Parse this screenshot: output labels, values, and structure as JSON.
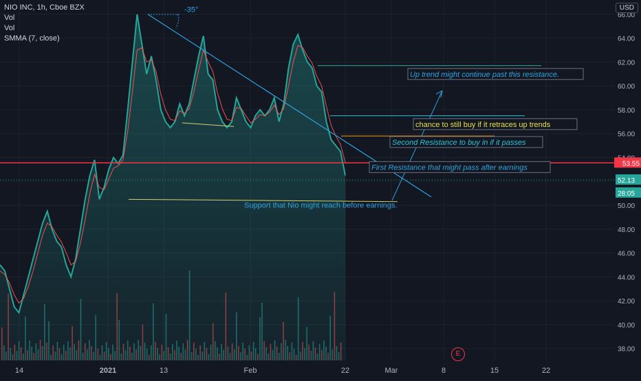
{
  "legend": {
    "title": "NIO INC, 1h, Cboe BZX",
    "line1": "Vol",
    "line2": "Vol",
    "line3": "SMMA (7, close)"
  },
  "currency": "USD",
  "earnings_badge": "E",
  "angle_label": "-35°",
  "chart_data": {
    "type": "area",
    "title": "NIO INC, 1h, Cboe BZX",
    "ylim": [
      37.0,
      67.2
    ],
    "y_ticks": [
      "38.00",
      "40.00",
      "42.00",
      "44.00",
      "46.00",
      "48.00",
      "50.00",
      "52.00",
      "54.00",
      "56.00",
      "58.00",
      "60.00",
      "62.00",
      "64.00",
      "66.00"
    ],
    "x_tick_labels": [
      "14",
      "2021",
      "13",
      "Feb",
      "22",
      "Mar",
      "8",
      "15",
      "22"
    ],
    "grid": true,
    "series": [
      {
        "values": [
          45.0,
          44.5,
          43.0,
          41.5,
          41.0,
          42.5,
          44.0,
          45.5,
          47.0,
          48.5,
          49.5,
          48.0,
          47.0,
          46.5,
          45.0,
          44.0,
          45.5,
          48.0,
          50.5,
          52.5,
          53.8,
          50.5,
          51.5,
          53.0,
          54.0,
          53.5,
          54.2,
          58.0,
          62.0,
          66.0,
          63.5,
          61.0,
          62.5,
          60.5,
          58.0,
          57.0,
          56.5,
          57.0,
          58.5,
          57.5,
          58.5,
          60.5,
          62.5,
          64.2,
          61.0,
          60.5,
          58.0,
          57.0,
          56.5,
          57.0,
          59.0,
          58.0,
          57.0,
          56.5,
          57.5,
          58.0,
          57.5,
          58.0,
          59.0,
          57.0,
          58.5,
          61.5,
          63.5,
          64.3,
          63.0,
          62.0,
          61.5,
          60.0,
          59.5,
          57.0,
          55.5,
          55.0,
          54.5,
          52.5
        ]
      },
      {
        "values": [
          44.5,
          44.2,
          43.5,
          42.5,
          41.8,
          42.2,
          43.2,
          44.5,
          46.0,
          47.5,
          48.5,
          48.2,
          47.5,
          46.9,
          46.0,
          45.0,
          45.3,
          46.8,
          48.8,
          51.0,
          52.6,
          51.5,
          51.3,
          52.2,
          53.1,
          53.3,
          53.8,
          56.2,
          59.5,
          63.0,
          63.2,
          62.0,
          62.2,
          61.2,
          59.3,
          58.0,
          57.2,
          57.1,
          57.9,
          57.7,
          58.1,
          59.5,
          61.3,
          63.0,
          62.0,
          61.2,
          59.4,
          58.1,
          57.2,
          57.1,
          58.2,
          58.1,
          57.5,
          56.9,
          57.2,
          57.6,
          57.5,
          57.8,
          58.4,
          57.6,
          58.1,
          60.0,
          62.0,
          63.4,
          63.2,
          62.5,
          61.9,
          60.8,
          60.0,
          58.3,
          56.7,
          55.8,
          55.1,
          53.6
        ]
      }
    ],
    "price_labels": [
      {
        "value": "53.55",
        "color": "#f23645"
      },
      {
        "value": "52.13",
        "color": "#26a69a"
      },
      {
        "value": "28:05",
        "color": "#26a69a"
      }
    ],
    "annotations": [
      {
        "text": "Up trend might continue past this resistance.",
        "color": "#2fa3e0",
        "italic": true
      },
      {
        "text": "chance to still buy if it retraces up trends",
        "color": "#e8e04a",
        "italic": false
      },
      {
        "text": "Second Resistance to buy in if it passes",
        "color": "#26c6da",
        "italic": true
      },
      {
        "text": "First Resistance that might pass after earnings",
        "color": "#2fa3e0",
        "italic": true
      },
      {
        "text": "Support that Nio might reach before earnings.",
        "color": "#2fa3e0",
        "italic": false
      }
    ],
    "horizontal_levels": [
      53.55,
      61.7,
      57.5,
      55.8,
      50.5
    ],
    "colors": {
      "price": "#26a69a",
      "smma": "#ef5350",
      "trend": "#2fa3e0",
      "support": "#d8d06a"
    }
  }
}
